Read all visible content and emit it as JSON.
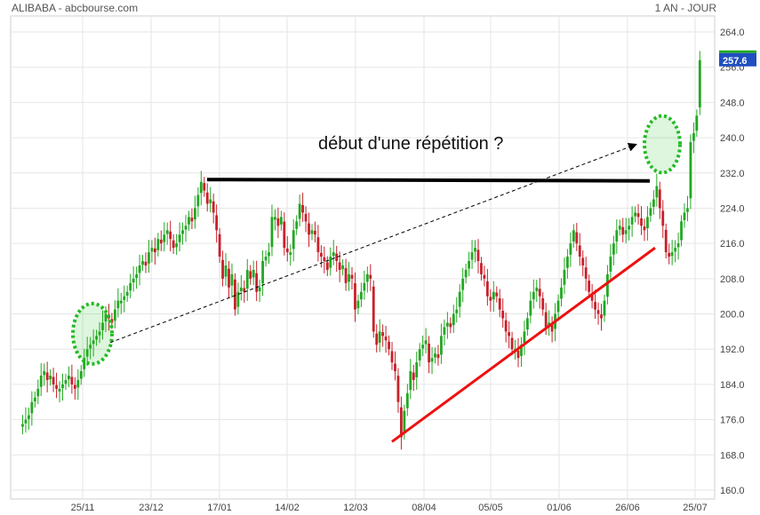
{
  "header": {
    "title": "ALIBABA - abcbourse.com",
    "period": "1 AN - JOUR"
  },
  "chart_data": {
    "type": "candlestick",
    "title": "",
    "ylim": [
      160,
      264
    ],
    "y_ticks": [
      "160.0",
      "168.0",
      "176.0",
      "184.0",
      "192.0",
      "200.0",
      "208.0",
      "216.0",
      "224.0",
      "232.0",
      "240.0",
      "248.0",
      "256.0",
      "264.0"
    ],
    "x_tick_labels": [
      "25/11",
      "23/12",
      "17/01",
      "14/02",
      "12/03",
      "08/04",
      "05/05",
      "01/06",
      "26/06",
      "25/07"
    ],
    "grid": true,
    "last_price": "257.6",
    "annotation": "début d'une répétition ?",
    "colors": {
      "up": "#22a822",
      "down": "#c8202a",
      "support": "#ee1111",
      "resistance": "#000000",
      "highlight": "#22bb22",
      "price_tag": "#1f4fc0"
    },
    "resistance_level": 230.5,
    "support_line": {
      "from": 171,
      "to": 215
    },
    "closes": [
      175,
      175,
      176,
      177,
      180,
      181,
      183,
      186,
      187,
      185,
      186,
      184,
      183,
      183,
      184,
      185,
      186,
      184,
      183,
      185,
      187,
      190,
      192,
      193,
      194,
      195,
      196,
      198,
      200,
      199,
      198,
      201,
      203,
      203,
      204,
      205,
      207,
      208,
      209,
      211,
      212,
      211,
      214,
      215,
      214,
      217,
      216,
      218,
      219,
      217,
      215,
      216,
      218,
      219,
      220,
      222,
      221,
      224,
      227,
      230,
      228,
      225,
      226,
      223,
      219,
      213,
      208,
      211,
      206,
      209,
      201,
      205,
      206,
      205,
      210,
      208,
      210,
      205,
      206,
      212,
      213,
      214,
      222,
      222,
      220,
      222,
      215,
      214,
      214,
      219,
      221,
      225,
      223,
      221,
      218,
      219,
      218,
      214,
      213,
      212,
      210,
      213,
      214,
      212,
      210,
      211,
      207,
      209,
      208,
      201,
      203,
      205,
      207,
      209,
      208,
      196,
      193,
      196,
      195,
      194,
      192,
      189,
      187,
      180,
      172,
      178,
      182,
      187,
      185,
      189,
      192,
      193,
      194,
      189,
      190,
      191,
      190,
      195,
      197,
      198,
      197,
      200,
      201,
      205,
      208,
      210,
      212,
      214,
      215,
      212,
      209,
      208,
      204,
      203,
      205,
      204,
      201,
      199,
      196,
      195,
      192,
      192,
      190,
      193,
      196,
      199,
      203,
      205,
      206,
      204,
      201,
      197,
      198,
      196,
      200,
      203,
      206,
      210,
      213,
      216,
      219,
      216,
      213,
      211,
      208,
      205,
      203,
      201,
      200,
      199,
      203,
      209,
      213,
      216,
      219,
      220,
      218,
      219,
      220,
      222,
      223,
      222,
      220,
      219,
      222,
      224,
      226,
      229,
      224,
      220,
      214,
      213,
      214,
      215,
      216,
      221,
      223,
      224,
      239,
      241,
      245,
      257.6
    ]
  }
}
